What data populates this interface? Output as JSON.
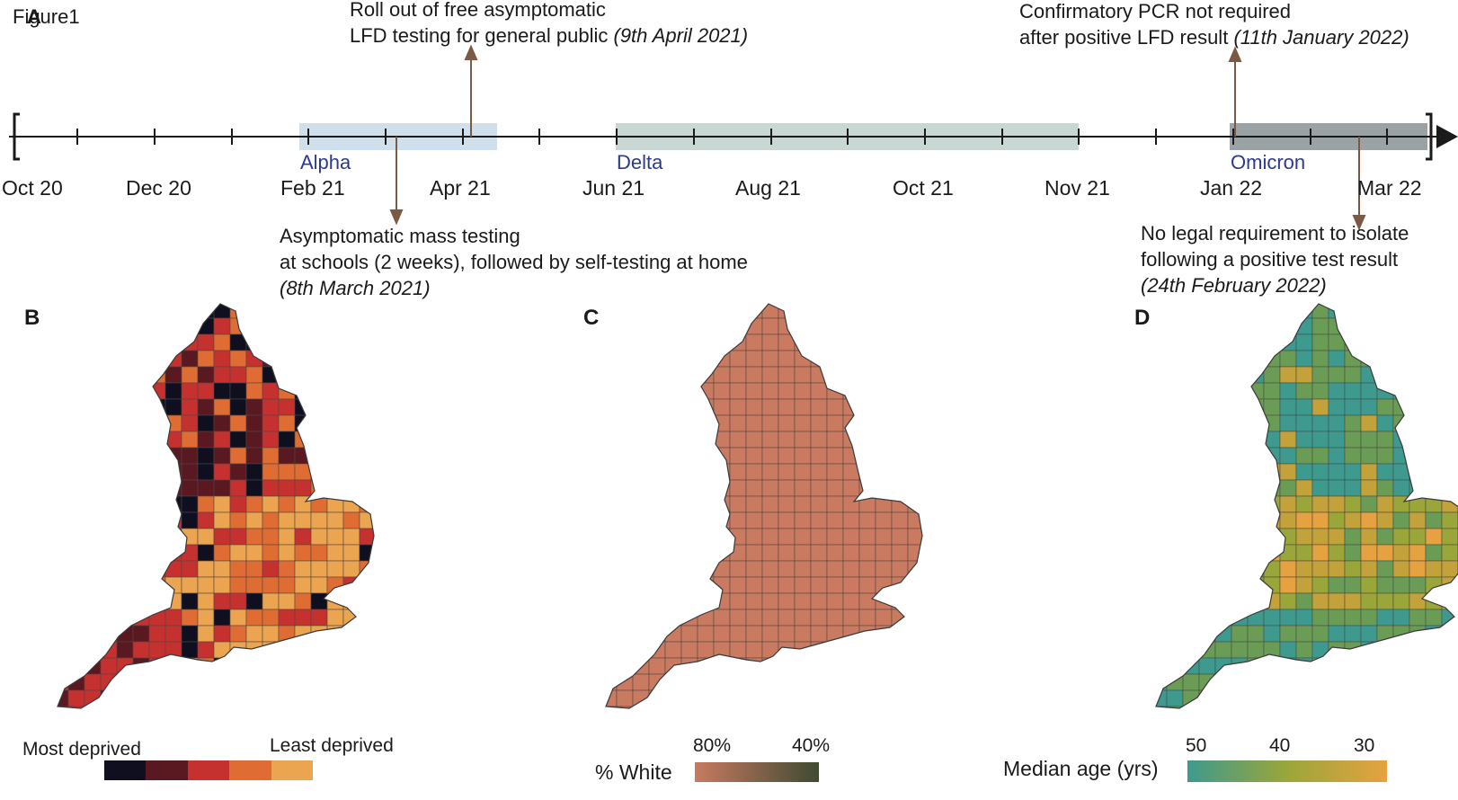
{
  "figure_title": "Figure1",
  "panels": {
    "a": "A",
    "b": "B",
    "c": "C",
    "d": "D"
  },
  "timeline": {
    "months": [
      "Oct 20",
      "Dec 20",
      "Feb 21",
      "Apr 21",
      "Jun 21",
      "Aug 21",
      "Oct 21",
      "Nov 21",
      "Jan 22",
      "Mar 22"
    ],
    "variants": {
      "alpha": "Alpha",
      "delta": "Delta",
      "omicron": "Omicron"
    },
    "variant_colors": {
      "alpha": "#cfe0ec",
      "delta": "#c8d6d4",
      "omicron": "#9aa2a3"
    },
    "arrow_color": "#7a5a44"
  },
  "events": {
    "free_lfd": {
      "line1": "Roll out of free asymptomatic",
      "line2": "LFD testing for general public",
      "date": "(9th April 2021)"
    },
    "pcr": {
      "line1": "Confirmatory PCR not required",
      "line2": "after positive LFD result",
      "date": "(11th January 2022)"
    },
    "schools": {
      "line1": "Asymptomatic mass testing",
      "line2": "at schools (2 weeks), followed by self-testing at home",
      "date": "(8th March 2021)"
    },
    "isolate": {
      "line1": "No legal requirement to isolate",
      "line2": "following a positive test result",
      "date": "(24th February 2022)"
    }
  },
  "legend_b": {
    "left_label": "Most deprived",
    "right_label": "Least deprived",
    "colors": [
      "#0f0f1f",
      "#5a1820",
      "#c4312e",
      "#df6c33",
      "#eba450"
    ]
  },
  "legend_c": {
    "title": "% White",
    "tick_80": "80%",
    "tick_40": "40%",
    "colors": [
      "#c87a60",
      "#3f4a33"
    ]
  },
  "legend_d": {
    "title": "Median age (yrs)",
    "tick_50": "50",
    "tick_40": "40",
    "tick_30": "30",
    "colors": [
      "#3e9a8e",
      "#9aa63a",
      "#e6a241"
    ]
  },
  "maps": {
    "b_palette": [
      "#0f0f1f",
      "#5a1820",
      "#c4312e",
      "#df6c33",
      "#eba450"
    ],
    "c_fill": "#c97a60",
    "d_palette": [
      "#3e9a8e",
      "#6a9c55",
      "#9aa63a",
      "#c3a23c",
      "#e6a241"
    ]
  }
}
